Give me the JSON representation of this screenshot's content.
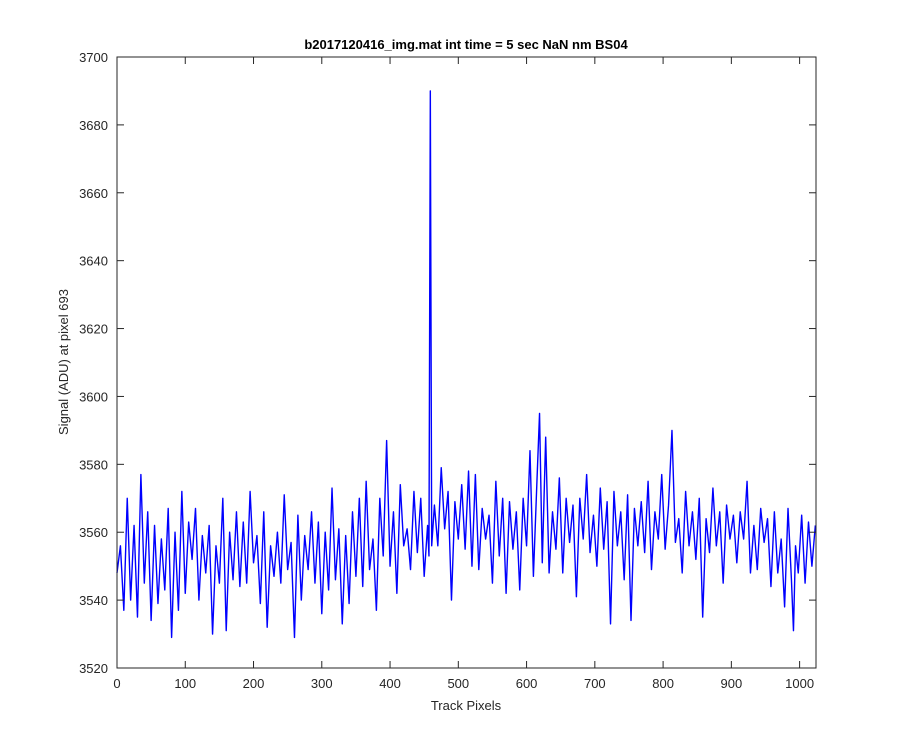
{
  "chart_data": {
    "type": "line",
    "title": "b2017120416_img.mat int time = 5 sec  NaN nm BS04",
    "xlabel": "Track Pixels",
    "ylabel": "Signal (ADU) at pixel 693",
    "xlim": [
      0,
      1024
    ],
    "ylim": [
      3520,
      3700
    ],
    "xticks": [
      0,
      100,
      200,
      300,
      400,
      500,
      600,
      700,
      800,
      900,
      1000
    ],
    "yticks": [
      3520,
      3540,
      3560,
      3580,
      3600,
      3620,
      3640,
      3660,
      3680,
      3700
    ],
    "grid": false,
    "legend": "none",
    "series": [
      {
        "color": "#0000ff",
        "spike": {
          "x": 459,
          "y": 3690
        },
        "points": [
          [
            0,
            3548
          ],
          [
            5,
            3556
          ],
          [
            10,
            3537
          ],
          [
            15,
            3570
          ],
          [
            20,
            3540
          ],
          [
            25,
            3562
          ],
          [
            30,
            3535
          ],
          [
            35,
            3577
          ],
          [
            40,
            3545
          ],
          [
            45,
            3566
          ],
          [
            50,
            3534
          ],
          [
            55,
            3562
          ],
          [
            60,
            3539
          ],
          [
            65,
            3558
          ],
          [
            70,
            3543
          ],
          [
            75,
            3567
          ],
          [
            80,
            3529
          ],
          [
            85,
            3560
          ],
          [
            90,
            3537
          ],
          [
            95,
            3572
          ],
          [
            100,
            3542
          ],
          [
            105,
            3563
          ],
          [
            110,
            3552
          ],
          [
            115,
            3567
          ],
          [
            120,
            3540
          ],
          [
            125,
            3559
          ],
          [
            130,
            3548
          ],
          [
            135,
            3562
          ],
          [
            140,
            3530
          ],
          [
            145,
            3556
          ],
          [
            150,
            3545
          ],
          [
            155,
            3570
          ],
          [
            160,
            3531
          ],
          [
            165,
            3560
          ],
          [
            170,
            3546
          ],
          [
            175,
            3566
          ],
          [
            180,
            3544
          ],
          [
            185,
            3563
          ],
          [
            190,
            3545
          ],
          [
            195,
            3572
          ],
          [
            200,
            3551
          ],
          [
            205,
            3559
          ],
          [
            210,
            3539
          ],
          [
            215,
            3566
          ],
          [
            220,
            3532
          ],
          [
            225,
            3556
          ],
          [
            230,
            3547
          ],
          [
            235,
            3560
          ],
          [
            240,
            3545
          ],
          [
            245,
            3571
          ],
          [
            250,
            3549
          ],
          [
            255,
            3557
          ],
          [
            260,
            3529
          ],
          [
            265,
            3565
          ],
          [
            270,
            3540
          ],
          [
            275,
            3559
          ],
          [
            280,
            3549
          ],
          [
            285,
            3566
          ],
          [
            290,
            3545
          ],
          [
            295,
            3563
          ],
          [
            300,
            3536
          ],
          [
            305,
            3560
          ],
          [
            310,
            3543
          ],
          [
            315,
            3573
          ],
          [
            320,
            3546
          ],
          [
            325,
            3561
          ],
          [
            330,
            3533
          ],
          [
            335,
            3559
          ],
          [
            340,
            3539
          ],
          [
            345,
            3566
          ],
          [
            350,
            3547
          ],
          [
            355,
            3570
          ],
          [
            360,
            3544
          ],
          [
            365,
            3575
          ],
          [
            370,
            3549
          ],
          [
            375,
            3558
          ],
          [
            380,
            3537
          ],
          [
            385,
            3570
          ],
          [
            390,
            3553
          ],
          [
            395,
            3587
          ],
          [
            400,
            3550
          ],
          [
            405,
            3566
          ],
          [
            410,
            3542
          ],
          [
            415,
            3574
          ],
          [
            420,
            3556
          ],
          [
            425,
            3561
          ],
          [
            430,
            3549
          ],
          [
            435,
            3572
          ],
          [
            440,
            3554
          ],
          [
            445,
            3570
          ],
          [
            450,
            3547
          ],
          [
            455,
            3562
          ],
          [
            457,
            3553
          ],
          [
            459,
            3690
          ],
          [
            461,
            3556
          ],
          [
            465,
            3568
          ],
          [
            470,
            3556
          ],
          [
            475,
            3579
          ],
          [
            480,
            3561
          ],
          [
            485,
            3572
          ],
          [
            490,
            3540
          ],
          [
            495,
            3569
          ],
          [
            500,
            3558
          ],
          [
            505,
            3574
          ],
          [
            510,
            3555
          ],
          [
            515,
            3578
          ],
          [
            520,
            3550
          ],
          [
            525,
            3577
          ],
          [
            530,
            3549
          ],
          [
            535,
            3567
          ],
          [
            540,
            3558
          ],
          [
            545,
            3565
          ],
          [
            550,
            3545
          ],
          [
            555,
            3575
          ],
          [
            560,
            3553
          ],
          [
            565,
            3570
          ],
          [
            570,
            3542
          ],
          [
            575,
            3569
          ],
          [
            580,
            3555
          ],
          [
            585,
            3566
          ],
          [
            590,
            3543
          ],
          [
            595,
            3570
          ],
          [
            600,
            3556
          ],
          [
            605,
            3584
          ],
          [
            610,
            3547
          ],
          [
            615,
            3574
          ],
          [
            619,
            3595
          ],
          [
            623,
            3551
          ],
          [
            628,
            3588
          ],
          [
            633,
            3548
          ],
          [
            638,
            3566
          ],
          [
            643,
            3555
          ],
          [
            648,
            3576
          ],
          [
            653,
            3548
          ],
          [
            658,
            3570
          ],
          [
            663,
            3557
          ],
          [
            668,
            3568
          ],
          [
            673,
            3541
          ],
          [
            678,
            3570
          ],
          [
            683,
            3558
          ],
          [
            688,
            3577
          ],
          [
            693,
            3554
          ],
          [
            698,
            3565
          ],
          [
            703,
            3550
          ],
          [
            708,
            3573
          ],
          [
            713,
            3555
          ],
          [
            718,
            3569
          ],
          [
            723,
            3533
          ],
          [
            728,
            3572
          ],
          [
            733,
            3556
          ],
          [
            738,
            3566
          ],
          [
            743,
            3546
          ],
          [
            748,
            3571
          ],
          [
            753,
            3534
          ],
          [
            758,
            3567
          ],
          [
            763,
            3556
          ],
          [
            768,
            3569
          ],
          [
            773,
            3554
          ],
          [
            778,
            3575
          ],
          [
            783,
            3549
          ],
          [
            788,
            3566
          ],
          [
            793,
            3558
          ],
          [
            798,
            3577
          ],
          [
            803,
            3555
          ],
          [
            808,
            3568
          ],
          [
            813,
            3590
          ],
          [
            818,
            3557
          ],
          [
            823,
            3564
          ],
          [
            828,
            3548
          ],
          [
            833,
            3572
          ],
          [
            838,
            3556
          ],
          [
            843,
            3566
          ],
          [
            848,
            3552
          ],
          [
            853,
            3570
          ],
          [
            858,
            3535
          ],
          [
            863,
            3564
          ],
          [
            868,
            3554
          ],
          [
            873,
            3573
          ],
          [
            878,
            3556
          ],
          [
            883,
            3566
          ],
          [
            888,
            3545
          ],
          [
            893,
            3568
          ],
          [
            898,
            3558
          ],
          [
            903,
            3565
          ],
          [
            908,
            3551
          ],
          [
            913,
            3566
          ],
          [
            918,
            3558
          ],
          [
            923,
            3575
          ],
          [
            928,
            3548
          ],
          [
            933,
            3562
          ],
          [
            938,
            3549
          ],
          [
            943,
            3567
          ],
          [
            948,
            3557
          ],
          [
            953,
            3564
          ],
          [
            958,
            3544
          ],
          [
            963,
            3566
          ],
          [
            968,
            3548
          ],
          [
            973,
            3558
          ],
          [
            978,
            3538
          ],
          [
            983,
            3567
          ],
          [
            988,
            3546
          ],
          [
            991,
            3531
          ],
          [
            994,
            3556
          ],
          [
            998,
            3548
          ],
          [
            1003,
            3565
          ],
          [
            1008,
            3545
          ],
          [
            1013,
            3563
          ],
          [
            1018,
            3550
          ],
          [
            1023,
            3562
          ]
        ]
      }
    ]
  }
}
